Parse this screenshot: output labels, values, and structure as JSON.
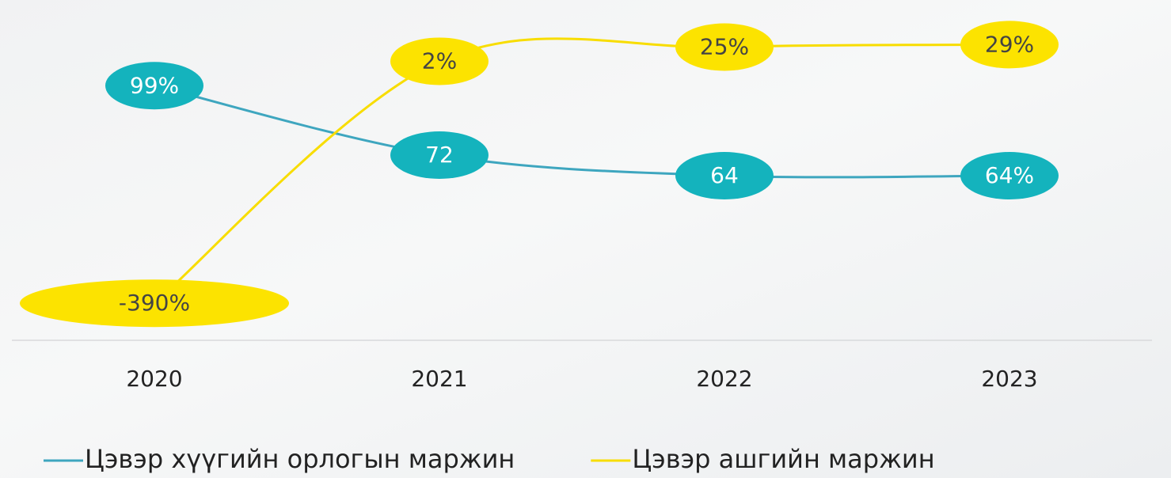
{
  "chart_data": {
    "type": "line",
    "categories": [
      "2020",
      "2021",
      "2022",
      "2023"
    ],
    "series": [
      {
        "name": "Цэвэр хүүгийн орлогын маржин",
        "color": "#3ea6bf",
        "marker_color": "#14b3bd",
        "values": [
          99,
          72,
          64,
          64
        ],
        "value_labels": [
          "99%",
          "72",
          "64",
          "64%"
        ]
      },
      {
        "name": "Цэвэр ашгийн маржин",
        "color": "#f8dd00",
        "marker_color": "#fce300",
        "axis": "y2",
        "values": [
          -390,
          2,
          25,
          29
        ],
        "value_labels": [
          "-390%",
          "2%",
          "25%",
          "29%"
        ]
      }
    ],
    "ylim": [
      0,
      120
    ],
    "y2lim": [
      -450,
      50
    ],
    "smooth": true,
    "legend": "bottom"
  }
}
